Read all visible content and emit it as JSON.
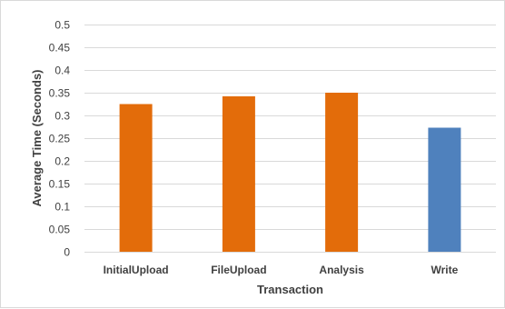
{
  "chart_data": {
    "type": "bar",
    "title": "",
    "xlabel": "Transaction",
    "ylabel": "Average Time (Seconds)",
    "categories": [
      "InitialUpload",
      "FileUpload",
      "Analysis",
      "Write"
    ],
    "values": [
      0.325,
      0.342,
      0.35,
      0.273
    ],
    "bar_colors": [
      "#E36C0A",
      "#E36C0A",
      "#E36C0A",
      "#4F81BD"
    ],
    "ylim": [
      0,
      0.5
    ],
    "yticks": [
      "0",
      "0.05",
      "0.1",
      "0.15",
      "0.2",
      "0.25",
      "0.3",
      "0.35",
      "0.4",
      "0.45",
      "0.5"
    ],
    "ytick_values": [
      0,
      0.05,
      0.1,
      0.15,
      0.2,
      0.25,
      0.3,
      0.35,
      0.4,
      0.45,
      0.5
    ],
    "grid": true,
    "grid_color": "#d9d9d9",
    "legend": "none"
  }
}
